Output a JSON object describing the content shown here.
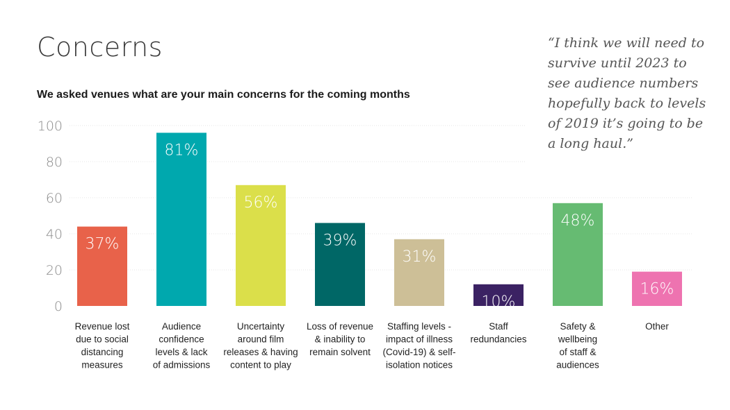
{
  "header": {
    "title": "Concerns",
    "subtitle": "We asked venues what are your main concerns for the coming months"
  },
  "quote": {
    "text": "“I think we will need to survive until 2023 to see audience numbers hopefully back to levels of 2019 it’s going to be a long haul.”",
    "lines": [
      "“I think we will need to",
      "survive until 2023 to",
      "see audience numbers",
      "hopefully back to levels",
      "of 2019 it’s going to be",
      "a long haul.”"
    ]
  },
  "chart_data": {
    "type": "bar",
    "title": "",
    "xlabel": "",
    "ylabel": "",
    "ylim": [
      0,
      100
    ],
    "yticks": [
      "0",
      "20",
      "40",
      "60",
      "80",
      "100"
    ],
    "grid": true,
    "categories": [
      "Revenue lost due to social distancing measures",
      "Audience confidence levels & lack of admissions",
      "Uncertainty around film releases & having content to play",
      "Loss of revenue & inability to remain solvent",
      "Staffing levels - impact of illness (Covid-19) & self-isolation notices",
      "Staff redundancies",
      "Safety & wellbeing of staff & audiences",
      "Other"
    ],
    "category_lines": [
      [
        "Revenue lost",
        "due to social",
        "distancing",
        "measures"
      ],
      [
        "Audience",
        "confidence",
        "levels & lack",
        "of admissions"
      ],
      [
        "Uncertainty",
        "around film",
        "releases & having",
        "content to play"
      ],
      [
        "Loss of revenue",
        "& inability to",
        "remain solvent"
      ],
      [
        "Staffing levels -",
        "impact of illness",
        "(Covid-19) & self-",
        "isolation notices"
      ],
      [
        "Staff",
        "redundancies"
      ],
      [
        "Safety &",
        "wellbeing",
        "of staff &",
        "audiences"
      ],
      [
        "Other"
      ]
    ],
    "bar_heights": [
      44,
      96,
      67,
      46,
      37,
      12,
      57,
      19
    ],
    "value_labels": [
      "37%",
      "81%",
      "56%",
      "39%",
      "31%",
      "10%",
      "48%",
      "16%"
    ],
    "colors": [
      "#e8624a",
      "#00a8ae",
      "#dbdf4a",
      "#006766",
      "#cdbf97",
      "#3b2263",
      "#66bb72",
      "#ee73b0"
    ]
  }
}
